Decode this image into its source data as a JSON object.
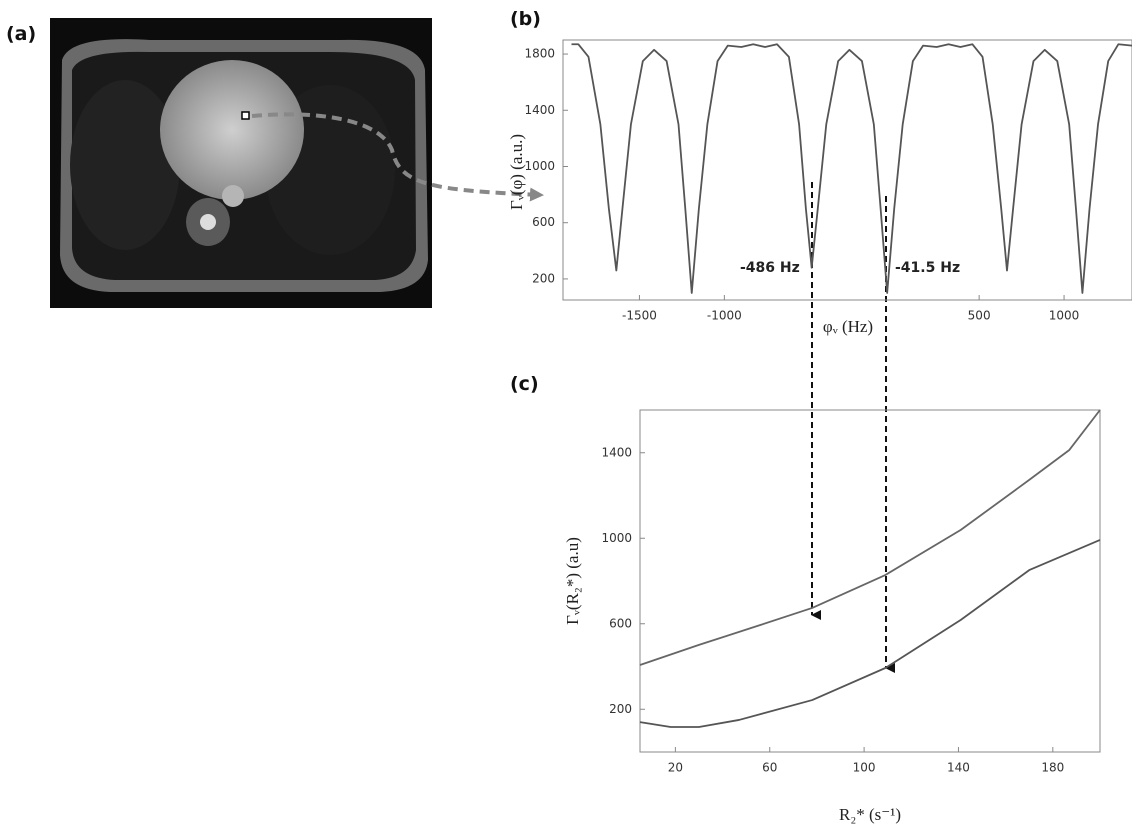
{
  "image_panel": {
    "label": "(a)"
  },
  "chart_data": [
    {
      "type": "line",
      "panel_label": "(b)",
      "y_label": "Γᵥ(φ)  (a.u.)",
      "x_label": "φᵥ (Hz)",
      "annotations": [
        "-486 Hz",
        "-41.5 Hz"
      ],
      "xlim": [
        -1950,
        1400
      ],
      "ylim": [
        50,
        1900
      ],
      "xticks": [
        -1500,
        -1000,
        500,
        1000
      ],
      "yticks": [
        200,
        600,
        1000,
        1400,
        1800
      ],
      "grid": false,
      "x": [
        -1900,
        -1860,
        -1800,
        -1730,
        -1680,
        -1636,
        -1600,
        -1550,
        -1480,
        -1414,
        -1340,
        -1270,
        -1230,
        -1192,
        -1150,
        -1100,
        -1040,
        -980,
        -900,
        -830,
        -760,
        -690,
        -620,
        -560,
        -520,
        -486,
        -450,
        -400,
        -330,
        -264,
        -190,
        -120,
        -80,
        -41.5,
        0,
        50,
        110,
        170,
        250,
        320,
        390,
        460,
        520,
        580,
        630,
        664,
        700,
        750,
        820,
        886,
        960,
        1030,
        1070,
        1108,
        1150,
        1200,
        1260,
        1320,
        1400
      ],
      "series": [
        {
          "color": "#555555",
          "values": [
            1870,
            1870,
            1780,
            1300,
            700,
            260,
            700,
            1300,
            1750,
            1830,
            1750,
            1300,
            700,
            100,
            700,
            1300,
            1750,
            1860,
            1850,
            1870,
            1850,
            1870,
            1780,
            1300,
            700,
            280,
            700,
            1300,
            1750,
            1830,
            1750,
            1300,
            700,
            100,
            700,
            1300,
            1750,
            1860,
            1850,
            1870,
            1850,
            1870,
            1780,
            1300,
            700,
            260,
            700,
            1300,
            1750,
            1830,
            1750,
            1300,
            700,
            100,
            700,
            1300,
            1750,
            1870,
            1860
          ]
        }
      ]
    },
    {
      "type": "line",
      "panel_label": "(c)",
      "y_label": "Γᵥ(R₂*)  (a.u)",
      "x_label": "R₂* (s⁻¹)",
      "xlim": [
        5,
        200
      ],
      "ylim": [
        0,
        1600
      ],
      "xticks": [
        20,
        60,
        100,
        140,
        180
      ],
      "yticks": [
        200,
        600,
        1000,
        1400
      ],
      "grid": false,
      "series": [
        {
          "color": "#666666",
          "x": [
            5,
            30,
            56,
            78,
            109,
            141,
            170,
            187,
            200
          ],
          "values": [
            407,
            501,
            594,
            674,
            828,
            1039,
            1273,
            1413,
            1600
          ]
        },
        {
          "color": "#555555",
          "x": [
            5,
            18,
            30,
            47,
            78,
            109,
            141,
            170,
            200
          ],
          "values": [
            140,
            117,
            117,
            150,
            243,
            393,
            618,
            851,
            992
          ]
        }
      ]
    }
  ]
}
